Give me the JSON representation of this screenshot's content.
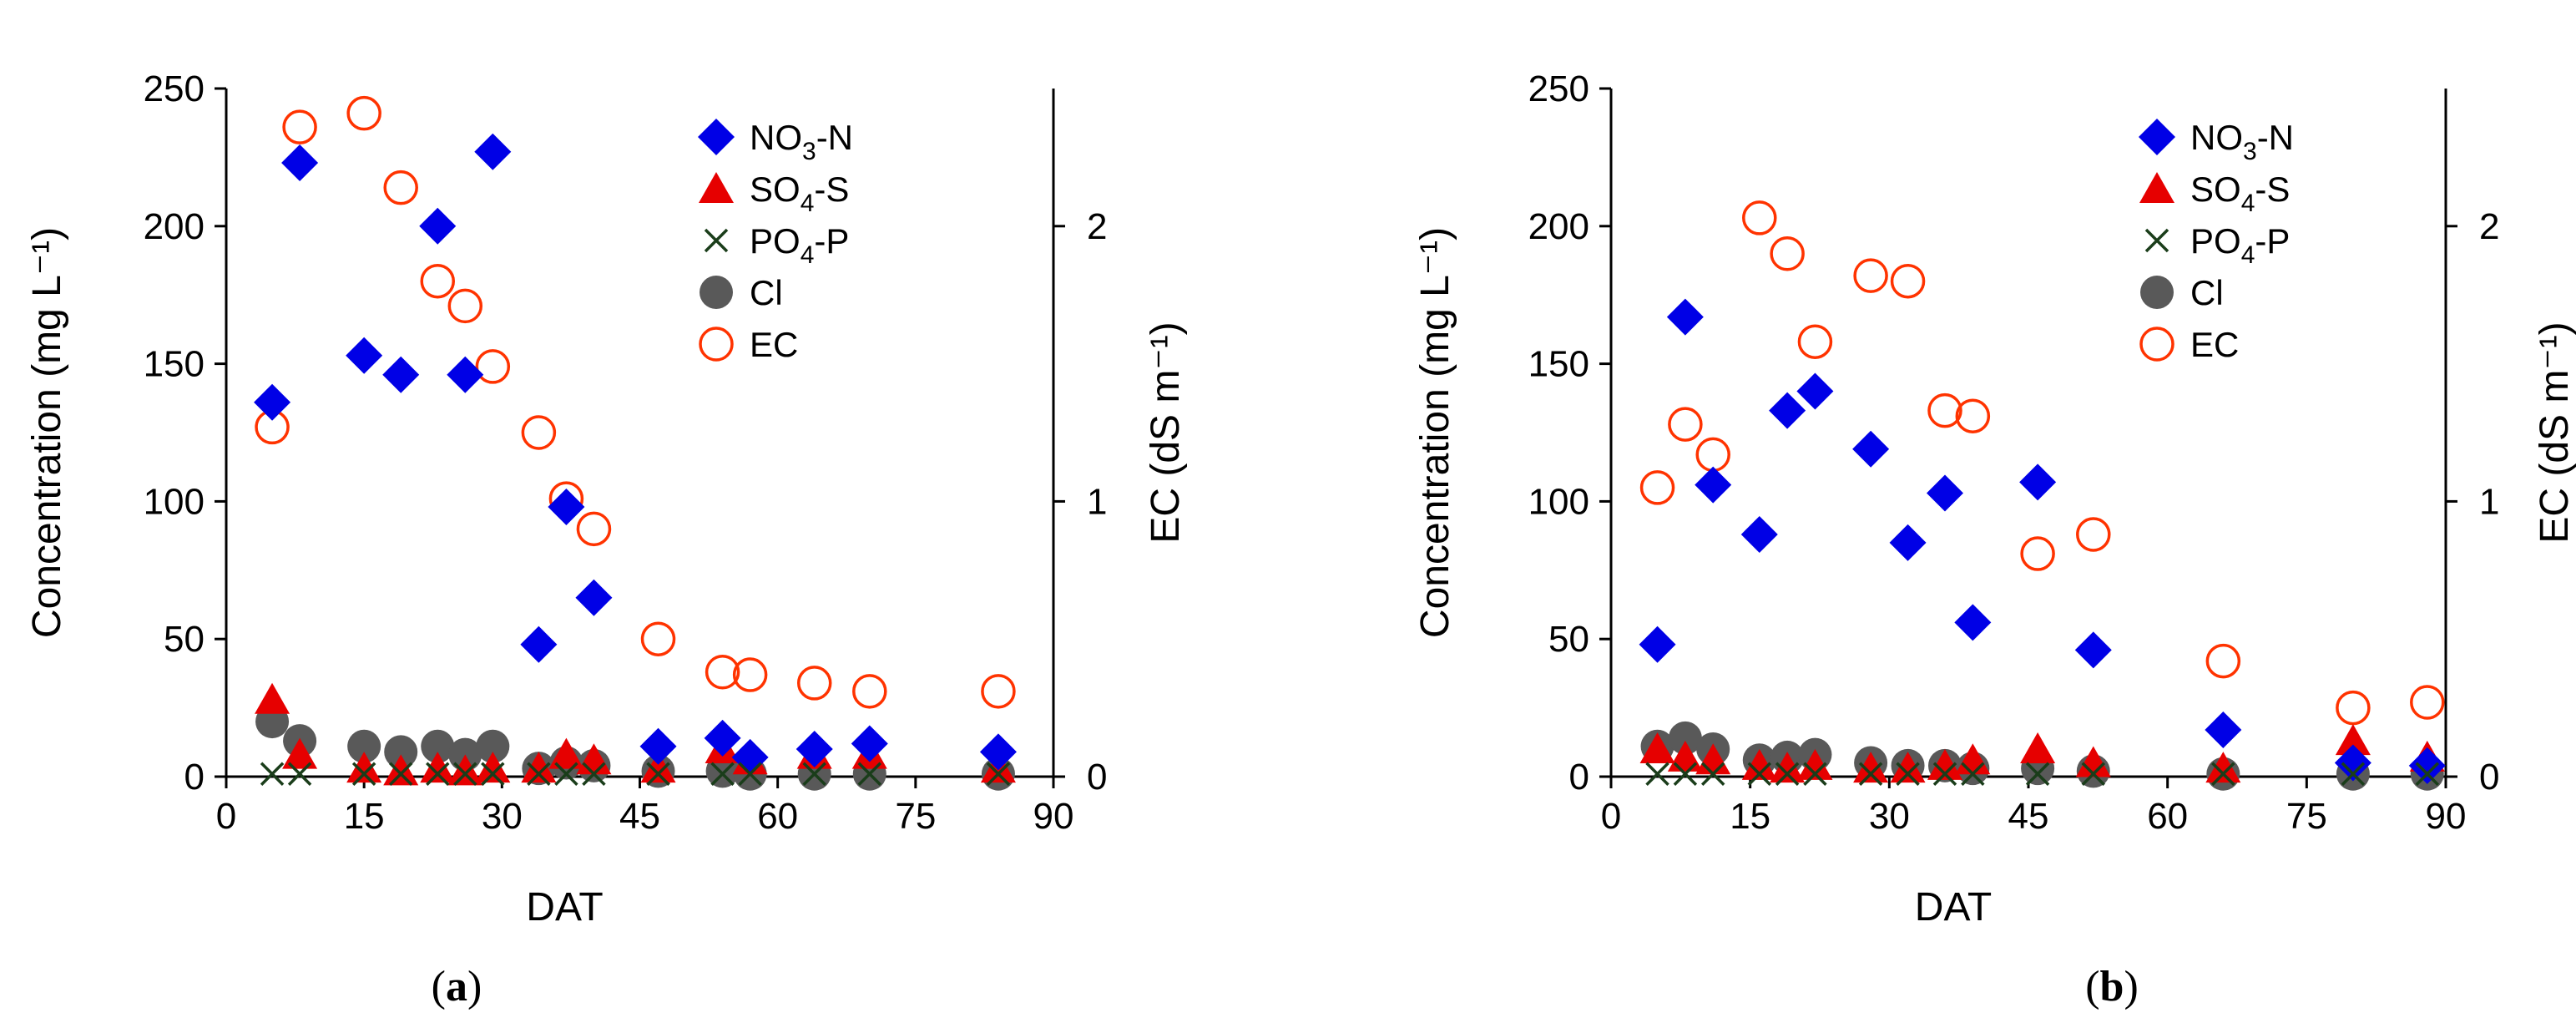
{
  "chart_data": [
    {
      "type": "scatter",
      "panel_label_prefix": "(",
      "panel_label_letter": "a",
      "panel_label_suffix": ")",
      "xlabel": "DAT",
      "ylabel_left": "Concentration (mg L⁻¹)",
      "ylabel_right": "EC (dS m⁻¹)",
      "xlim": [
        0,
        90
      ],
      "ylim_left": [
        0,
        250
      ],
      "ylim_right": [
        0,
        2.5
      ],
      "xticks": [
        "0",
        "15",
        "30",
        "45",
        "60",
        "75",
        "90"
      ],
      "yticks_left": [
        "0",
        "50",
        "100",
        "150",
        "200",
        "250"
      ],
      "yticks_right": [
        "0",
        "1",
        "2"
      ],
      "legend_position": "top-right",
      "series": [
        {
          "name": "NO3-N",
          "legend_main": "NO",
          "legend_sub": "3",
          "legend_tail": "-N",
          "marker": "diamond",
          "color": "#0000e6",
          "axis": "left",
          "x": [
            5,
            8,
            15,
            19,
            23,
            26,
            29,
            34,
            37,
            40,
            47,
            54,
            57,
            64,
            70,
            84
          ],
          "y": [
            136,
            223,
            153,
            146,
            200,
            146,
            227,
            48,
            98,
            65,
            11,
            14,
            7,
            10,
            12,
            9
          ]
        },
        {
          "name": "SO4-S",
          "legend_main": "SO",
          "legend_sub": "4",
          "legend_tail": "-S",
          "marker": "triangle",
          "color": "#e60000",
          "axis": "left",
          "x": [
            5,
            8,
            15,
            19,
            23,
            26,
            29,
            34,
            37,
            40,
            47,
            54,
            57,
            64,
            70,
            84
          ],
          "y": [
            28,
            8,
            3,
            2,
            3,
            2,
            3,
            3,
            8,
            6,
            3,
            10,
            6,
            8,
            8,
            3
          ]
        },
        {
          "name": "PO4-P",
          "legend_main": "PO",
          "legend_sub": "4",
          "legend_tail": "-P",
          "marker": "x",
          "color": "#1a3d1a",
          "axis": "left",
          "x": [
            5,
            8,
            15,
            19,
            23,
            26,
            29,
            34,
            37,
            40,
            47,
            54,
            57,
            64,
            70,
            84
          ],
          "y": [
            1,
            1,
            1,
            1,
            1,
            1,
            1,
            1,
            1,
            1,
            1,
            1,
            1,
            1,
            1,
            1
          ]
        },
        {
          "name": "Cl",
          "legend_main": "Cl",
          "legend_sub": "",
          "legend_tail": "",
          "marker": "circle",
          "color": "#595959",
          "axis": "left",
          "x": [
            5,
            8,
            15,
            19,
            23,
            26,
            29,
            34,
            37,
            40,
            47,
            54,
            57,
            64,
            70,
            84
          ],
          "y": [
            20,
            13,
            11,
            9,
            11,
            8,
            11,
            3,
            5,
            4,
            2,
            2,
            1,
            1,
            1,
            1
          ]
        },
        {
          "name": "EC",
          "legend_main": "EC",
          "legend_sub": "",
          "legend_tail": "",
          "marker": "open-circle",
          "color": "#ff3300",
          "axis": "right",
          "x": [
            5,
            8,
            15,
            19,
            23,
            26,
            29,
            34,
            37,
            40,
            47,
            54,
            57,
            64,
            70,
            84
          ],
          "y": [
            1.27,
            2.36,
            2.41,
            2.14,
            1.8,
            1.71,
            1.49,
            1.25,
            1.01,
            0.9,
            0.5,
            0.38,
            0.37,
            0.34,
            0.31,
            0.31
          ]
        }
      ]
    },
    {
      "type": "scatter",
      "panel_label_prefix": "(",
      "panel_label_letter": "b",
      "panel_label_suffix": ")",
      "xlabel": "DAT",
      "ylabel_left": "Concentration (mg L⁻¹)",
      "ylabel_right": "EC (dS m⁻¹)",
      "xlim": [
        0,
        90
      ],
      "ylim_left": [
        0,
        250
      ],
      "ylim_right": [
        0,
        2.5
      ],
      "xticks": [
        "0",
        "15",
        "30",
        "45",
        "60",
        "75",
        "90"
      ],
      "yticks_left": [
        "0",
        "50",
        "100",
        "150",
        "200",
        "250"
      ],
      "yticks_right": [
        "0",
        "1",
        "2"
      ],
      "legend_position": "top-right",
      "series": [
        {
          "name": "NO3-N",
          "legend_main": "NO",
          "legend_sub": "3",
          "legend_tail": "-N",
          "marker": "diamond",
          "color": "#0000e6",
          "axis": "left",
          "x": [
            5,
            8,
            11,
            16,
            19,
            22,
            28,
            32,
            36,
            39,
            46,
            52,
            66,
            80,
            88
          ],
          "y": [
            48,
            167,
            106,
            88,
            133,
            140,
            119,
            85,
            103,
            56,
            107,
            46,
            17,
            5,
            4
          ]
        },
        {
          "name": "SO4-S",
          "legend_main": "SO",
          "legend_sub": "4",
          "legend_tail": "-S",
          "marker": "triangle",
          "color": "#e60000",
          "axis": "left",
          "x": [
            5,
            8,
            11,
            16,
            19,
            22,
            28,
            32,
            36,
            39,
            46,
            52,
            66,
            80,
            88
          ],
          "y": [
            10,
            7,
            6,
            4,
            3,
            4,
            3,
            3,
            4,
            6,
            10,
            5,
            3,
            13,
            7
          ]
        },
        {
          "name": "PO4-P",
          "legend_main": "PO",
          "legend_sub": "4",
          "legend_tail": "-P",
          "marker": "x",
          "color": "#1a3d1a",
          "axis": "left",
          "x": [
            5,
            8,
            11,
            16,
            19,
            22,
            28,
            32,
            36,
            39,
            46,
            52,
            66,
            80,
            88
          ],
          "y": [
            1,
            1,
            1,
            1,
            1,
            1,
            1,
            1,
            1,
            1,
            1,
            1,
            1,
            1,
            1
          ]
        },
        {
          "name": "Cl",
          "legend_main": "Cl",
          "legend_sub": "",
          "legend_tail": "",
          "marker": "circle",
          "color": "#595959",
          "axis": "left",
          "x": [
            5,
            8,
            11,
            16,
            19,
            22,
            28,
            32,
            36,
            39,
            46,
            52,
            66,
            80,
            88
          ],
          "y": [
            11,
            14,
            10,
            6,
            7,
            8,
            5,
            4,
            4,
            3,
            3,
            2,
            1,
            1,
            1
          ]
        },
        {
          "name": "EC",
          "legend_main": "EC",
          "legend_sub": "",
          "legend_tail": "",
          "marker": "open-circle",
          "color": "#ff3300",
          "axis": "right",
          "x": [
            5,
            8,
            11,
            16,
            19,
            22,
            28,
            32,
            36,
            39,
            46,
            52,
            66,
            80,
            88
          ],
          "y": [
            1.05,
            1.28,
            1.17,
            2.03,
            1.9,
            1.58,
            1.82,
            1.8,
            1.33,
            1.31,
            0.81,
            0.88,
            0.42,
            0.25,
            0.27
          ]
        }
      ]
    }
  ]
}
